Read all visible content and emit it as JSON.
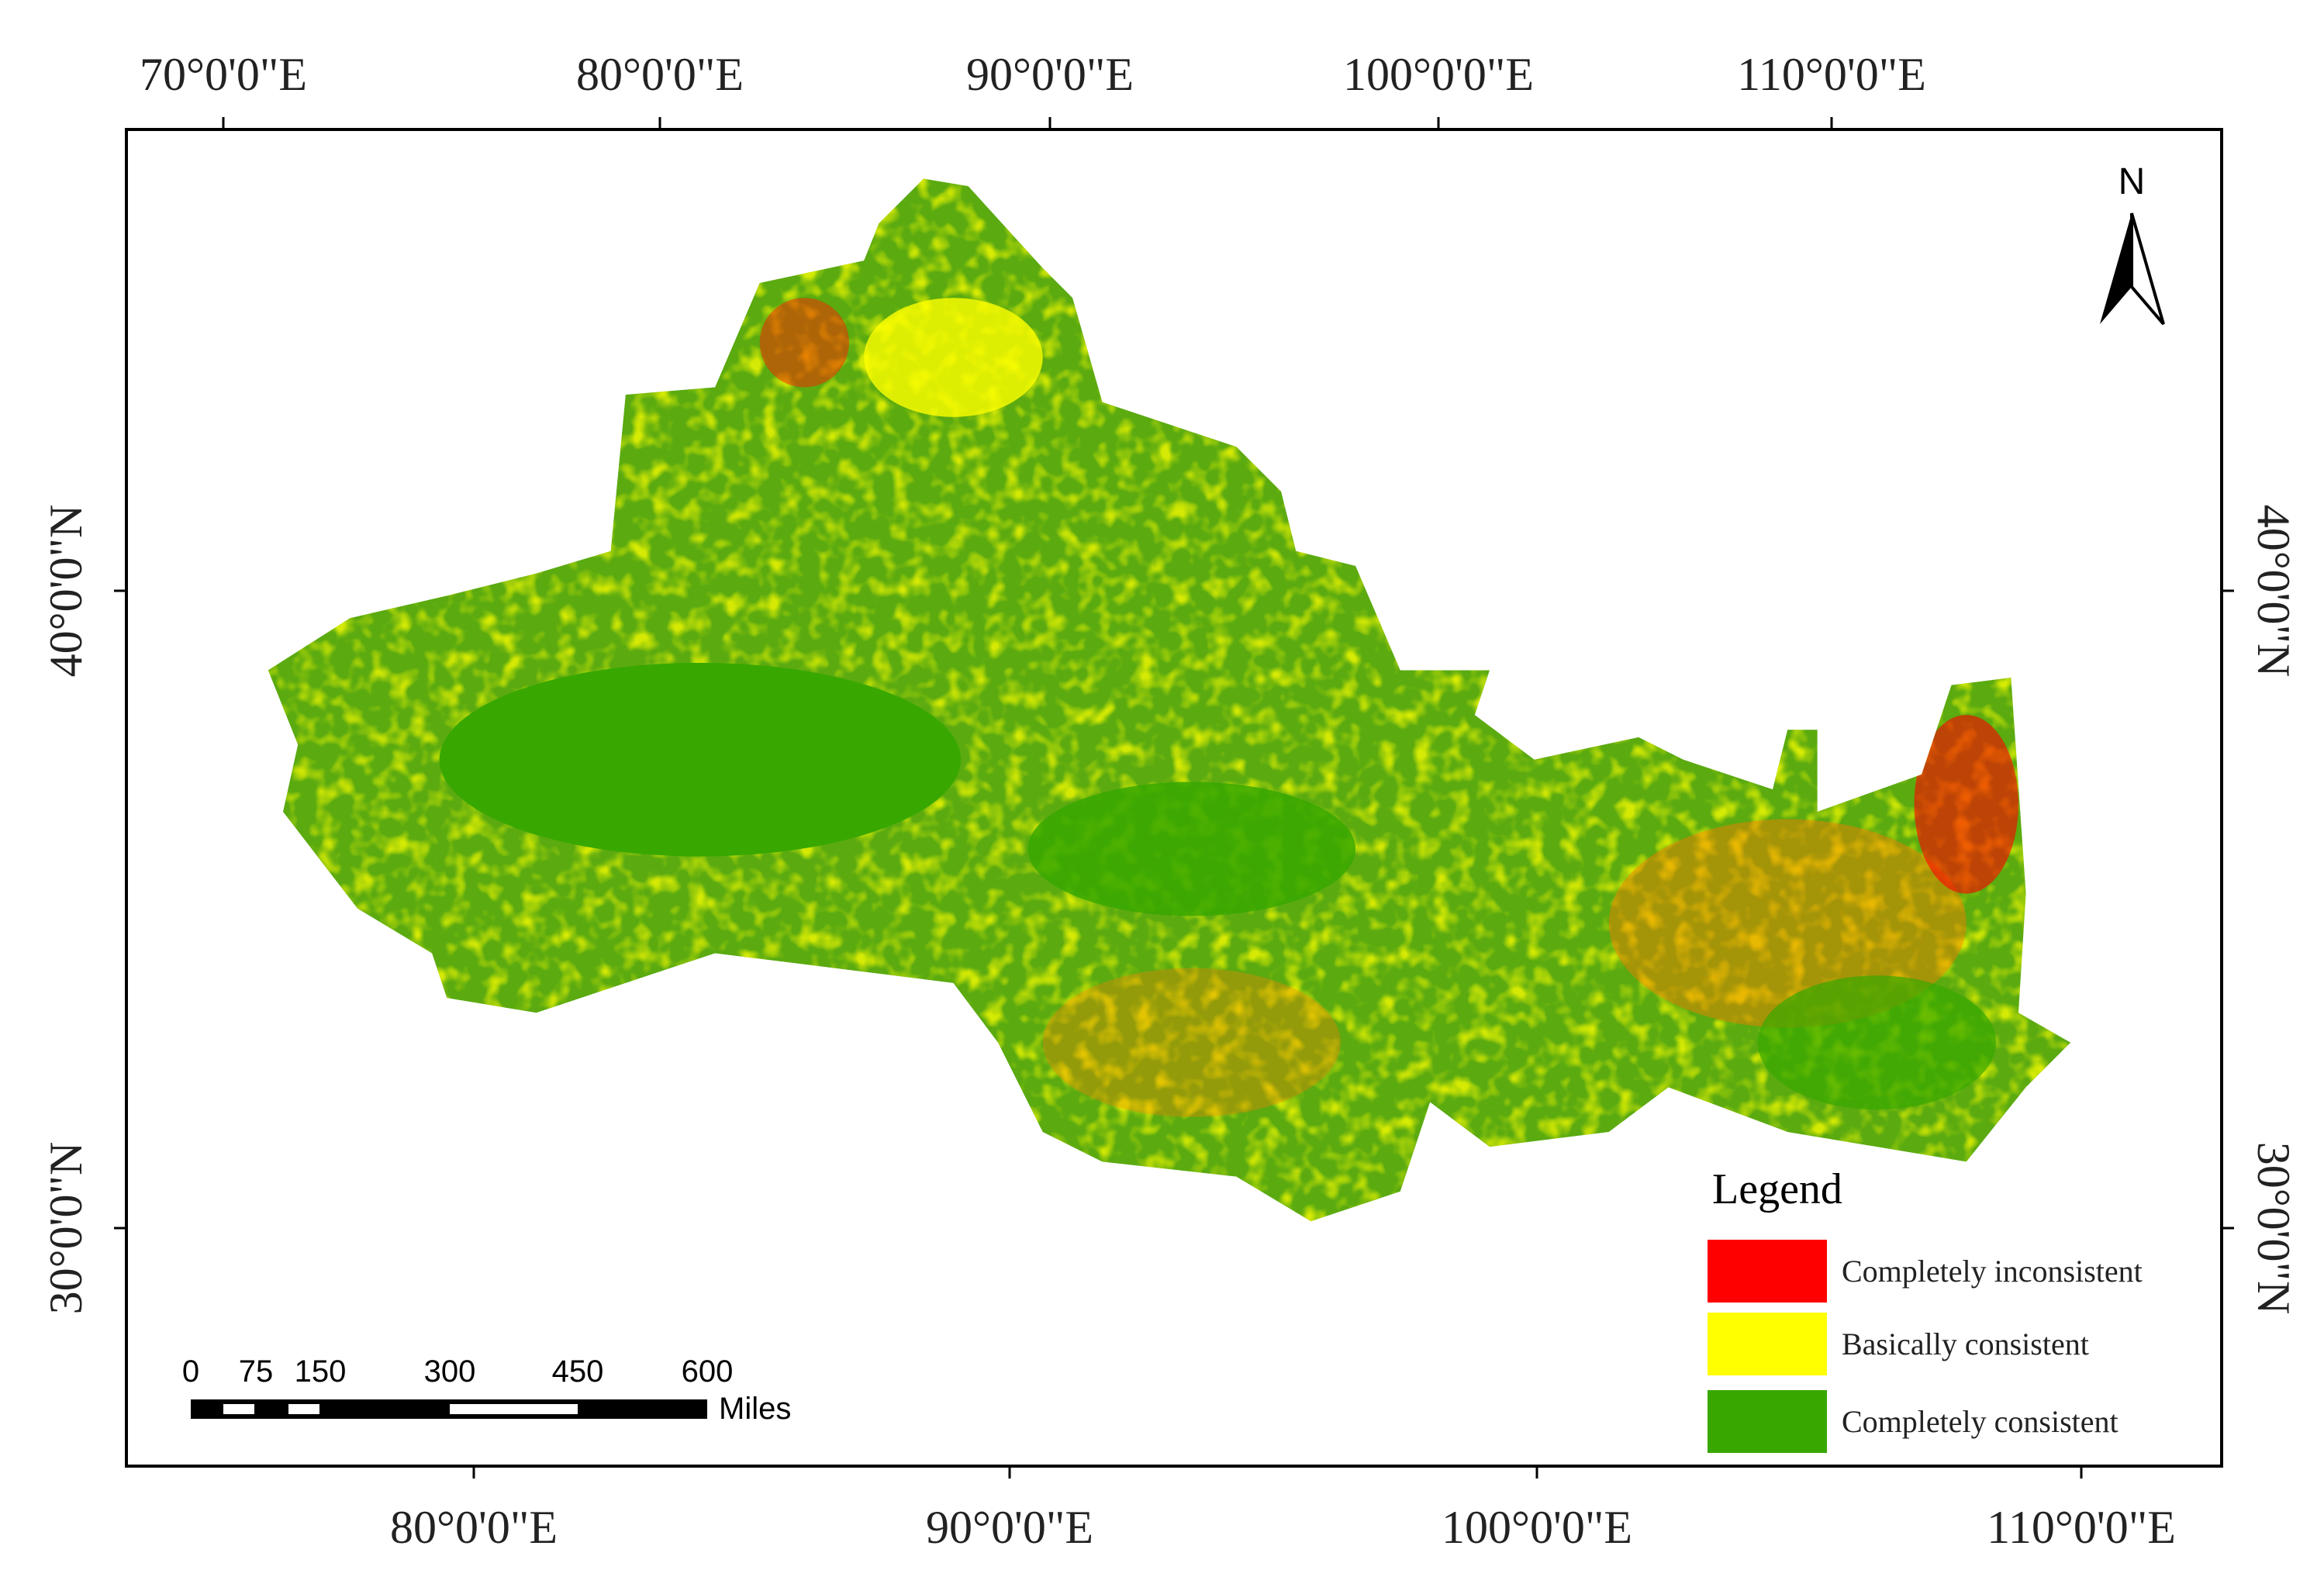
{
  "map": {
    "top_labels": [
      "70°0'0\"E",
      "80°0'0\"E",
      "90°0'0\"E",
      "100°0'0\"E",
      "110°0'0\"E"
    ],
    "bottom_labels": [
      "80°0'0\"E",
      "90°0'0\"E",
      "100°0'0\"E",
      "110°0'0\"E"
    ],
    "left_labels": [
      "40°0'0\"N",
      "30°0'0\"N"
    ],
    "right_labels": [
      "40°0'0\"N",
      "30°0'0\"N"
    ],
    "north": "N",
    "legend": {
      "title": "Legend",
      "items": [
        {
          "label": "Completely inconsistent",
          "color": "#ff0000"
        },
        {
          "label": "Basically consistent",
          "color": "#ffff00"
        },
        {
          "label": "Completely consistent",
          "color": "#38a800"
        }
      ]
    },
    "scale_bar": {
      "labels": [
        "0",
        "75",
        "150",
        "300",
        "450",
        "600"
      ],
      "unit": "Miles"
    }
  }
}
